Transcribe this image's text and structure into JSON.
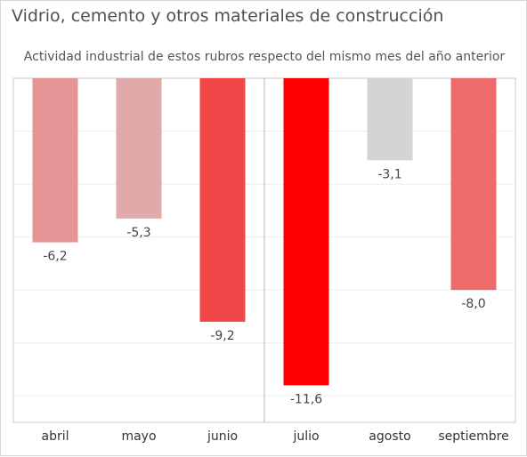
{
  "chart_data": {
    "type": "bar",
    "title": "Vidrio, cemento y otros materiales de construcción",
    "subtitle": "Actividad industrial de estos rubros  respecto del mismo mes del año anterior",
    "categories": [
      "abril",
      "mayo",
      "junio",
      "julio",
      "agosto",
      "septiembre"
    ],
    "values": [
      -6.2,
      -5.3,
      -9.2,
      -11.6,
      -3.1,
      -8.0
    ],
    "value_labels": [
      "-6,2",
      "-5,3",
      "-9,2",
      "-11,6",
      "-3,1",
      "-8,0"
    ],
    "colors": [
      "#e39494",
      "#e0aaaa",
      "#f04848",
      "#ff0000",
      "#d4d4d4",
      "#ef6a6a"
    ],
    "xlabel": "",
    "ylabel": "",
    "ylim": [
      -13,
      0
    ],
    "grid": true,
    "divider_after_category": "junio",
    "colors_ui": {
      "gridline": "#ececec",
      "axis": "#c8c8c8",
      "divider": "#b4b4b4"
    }
  }
}
